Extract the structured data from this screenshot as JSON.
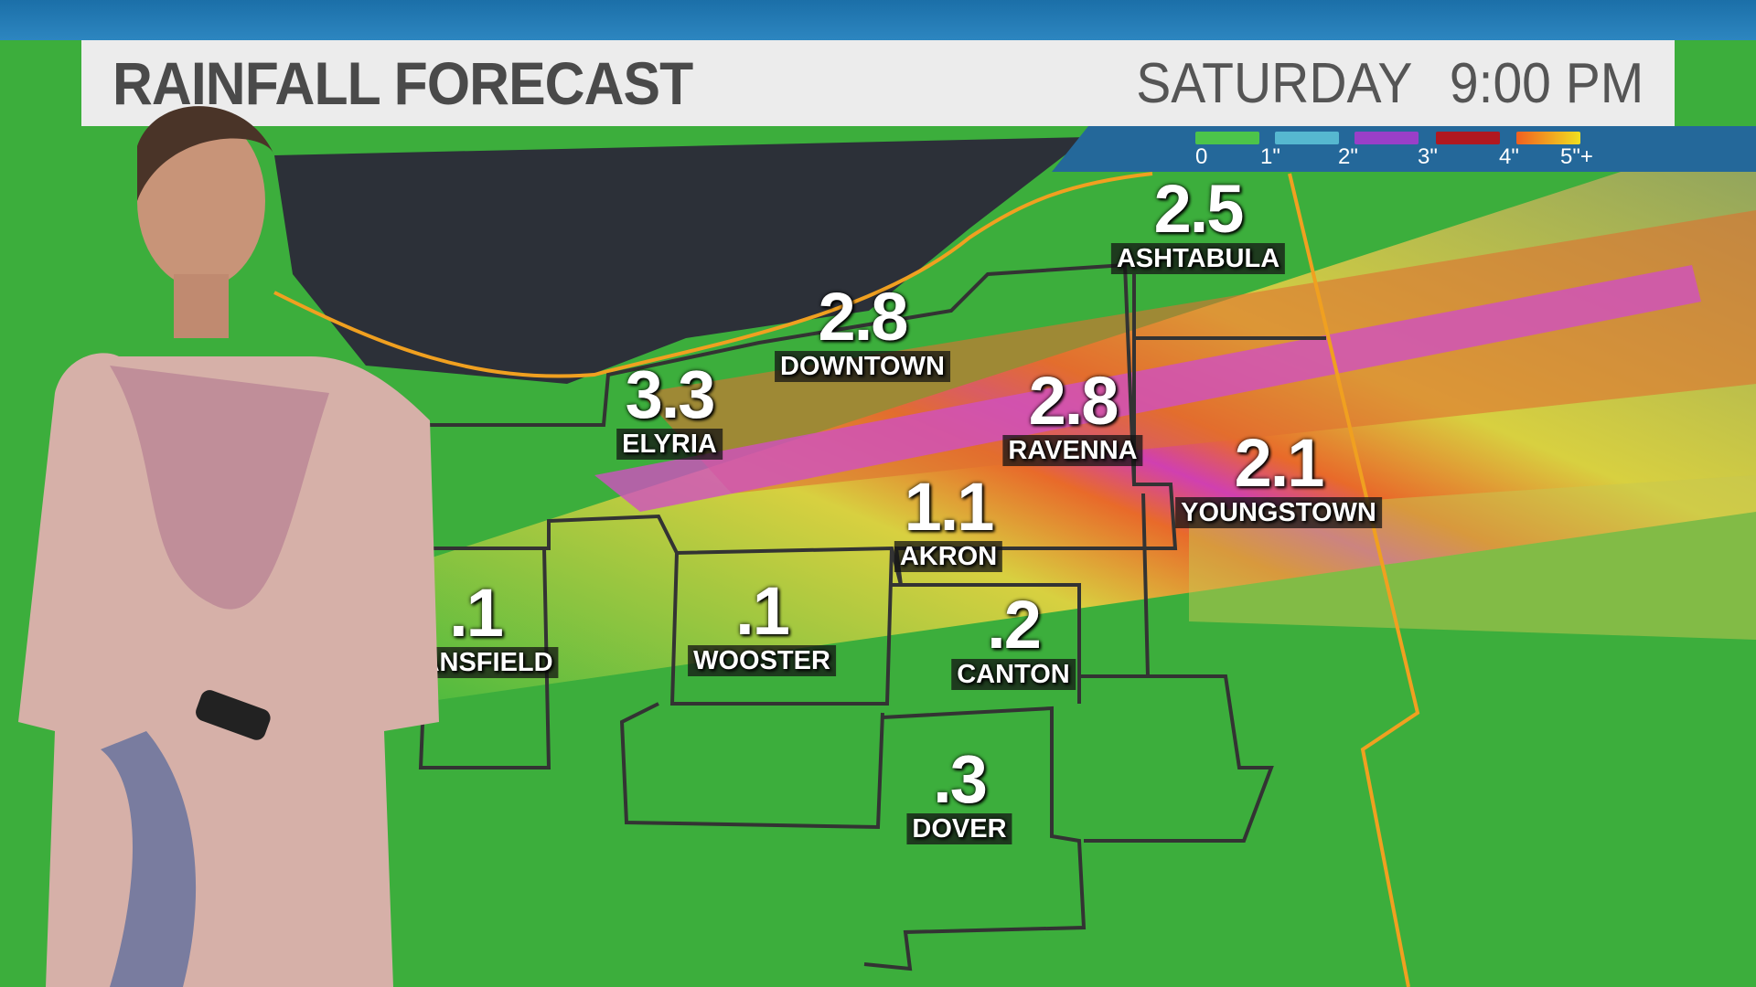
{
  "header": {
    "title": "RAINFALL FORECAST",
    "day": "SATURDAY",
    "time": "9:00 PM"
  },
  "legend": {
    "labels": [
      "0",
      "1\"",
      "2\"",
      "3\"",
      "4\"",
      "5\"+"
    ],
    "colors": [
      "#4cc44a",
      "#56c2d8",
      "#9a3fc8",
      "#b01820",
      "#f0a020"
    ]
  },
  "locations": [
    {
      "value": "2.5",
      "name": "ASHTABULA"
    },
    {
      "value": "2.8",
      "name": "DOWNTOWN"
    },
    {
      "value": "3.3",
      "name": "ELYRIA"
    },
    {
      "value": "2.8",
      "name": "RAVENNA"
    },
    {
      "value": "2.1",
      "name": "YOUNGSTOWN"
    },
    {
      "value": "1.1",
      "name": "AKRON"
    },
    {
      "value": ".1",
      "name": "MANSFIELD"
    },
    {
      "value": ".1",
      "name": "WOOSTER"
    },
    {
      "value": ".2",
      "name": "CANTON"
    },
    {
      "value": ".3",
      "name": "DOVER"
    }
  ]
}
